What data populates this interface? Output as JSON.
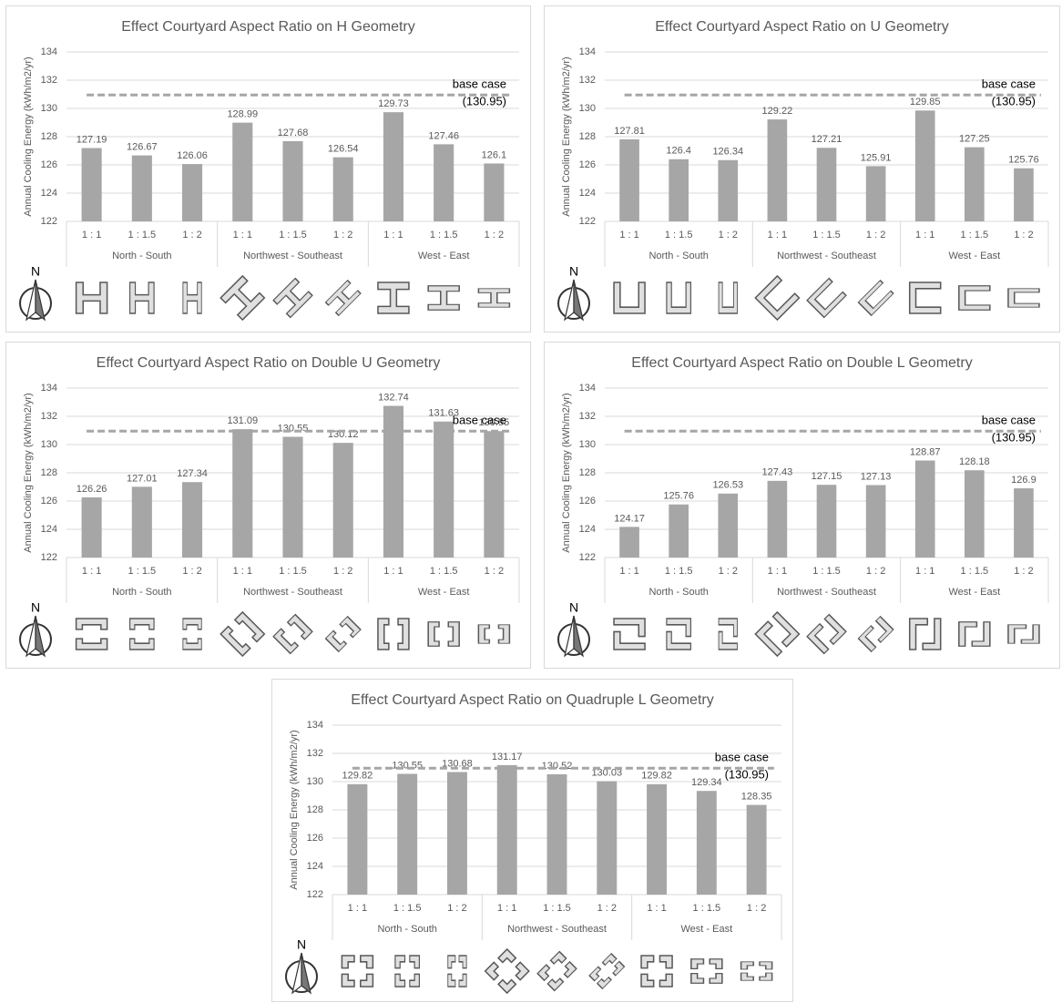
{
  "chart_data": [
    {
      "type": "bar",
      "title": "Effect Courtyard Aspect Ratio on H Geometry",
      "y_label": "Annual Cooling Energy (kWh/m2/yr)",
      "categories": [
        "1 : 1",
        "1 : 1.5",
        "1 : 2",
        "1 : 1",
        "1 : 1.5",
        "1 : 2",
        "1 : 1",
        "1 : 1.5",
        "1 : 2"
      ],
      "groups": [
        "North - South",
        "Northwest - Southeast",
        "West - East"
      ],
      "values": [
        127.19,
        126.67,
        126.06,
        128.99,
        127.68,
        126.54,
        129.73,
        127.46,
        126.1
      ],
      "color": "#a6a6a6",
      "ylim": [
        122,
        134
      ],
      "yticks": [
        122,
        124,
        126,
        128,
        130,
        132,
        134
      ],
      "grid": true,
      "baseline": {
        "value": 130.95,
        "label": "base case",
        "value_label": "(130.95)"
      },
      "north_label": "N"
    },
    {
      "type": "bar",
      "title": "Effect Courtyard Aspect Ratio on U Geometry",
      "y_label": "Annual Cooling Energy (kWh/m2/yr)",
      "categories": [
        "1 : 1",
        "1 : 1.5",
        "1 : 2",
        "1 : 1",
        "1 : 1.5",
        "1 : 2",
        "1 : 1",
        "1 : 1.5",
        "1 : 2"
      ],
      "groups": [
        "North - South",
        "Northwest - Southeast",
        "West - East"
      ],
      "values": [
        127.81,
        126.4,
        126.34,
        129.22,
        127.21,
        125.91,
        129.85,
        127.25,
        125.76
      ],
      "color": "#a6a6a6",
      "ylim": [
        122,
        134
      ],
      "yticks": [
        122,
        124,
        126,
        128,
        130,
        132,
        134
      ],
      "grid": true,
      "baseline": {
        "value": 130.95,
        "label": "base case",
        "value_label": "(130.95)"
      },
      "north_label": "N"
    },
    {
      "type": "bar",
      "title": "Effect Courtyard Aspect Ratio on Double U Geometry",
      "y_label": "Annual Cooling Energy (kWh/m2/yr)",
      "categories": [
        "1 : 1",
        "1 : 1.5",
        "1 : 2",
        "1 : 1",
        "1 : 1.5",
        "1 : 2",
        "1 : 1",
        "1 : 1.5",
        "1 : 2"
      ],
      "groups": [
        "North - South",
        "Northwest - Southeast",
        "West - East"
      ],
      "values": [
        126.26,
        127.01,
        127.34,
        131.09,
        130.55,
        130.12,
        132.74,
        131.63,
        130.95
      ],
      "color": "#a6a6a6",
      "ylim": [
        122,
        134
      ],
      "yticks": [
        122,
        124,
        126,
        128,
        130,
        132,
        134
      ],
      "grid": true,
      "baseline": {
        "value": 130.95,
        "label": "base case"
      },
      "north_label": "N"
    },
    {
      "type": "bar",
      "title": "Effect Courtyard Aspect Ratio on Double L Geometry",
      "y_label": "Annual Cooling Energy (kWh/m2/yr)",
      "categories": [
        "1 : 1",
        "1 : 1.5",
        "1 : 2",
        "1 : 1",
        "1 : 1.5",
        "1 : 2",
        "1 : 1",
        "1 : 1.5",
        "1 : 2"
      ],
      "groups": [
        "North - South",
        "Northwest - Southeast",
        "West - East"
      ],
      "values": [
        124.17,
        125.76,
        126.53,
        127.43,
        127.15,
        127.13,
        128.87,
        128.18,
        126.9
      ],
      "color": "#a6a6a6",
      "ylim": [
        122,
        134
      ],
      "yticks": [
        122,
        124,
        126,
        128,
        130,
        132,
        134
      ],
      "grid": true,
      "baseline": {
        "value": 130.95,
        "label": "base case",
        "value_label": "(130.95)"
      },
      "north_label": "N"
    },
    {
      "type": "bar",
      "title": "Effect Courtyard Aspect Ratio on Quadruple L Geometry",
      "y_label": "Annual Cooling Energy (kWh/m2/yr)",
      "categories": [
        "1 : 1",
        "1 : 1.5",
        "1 : 2",
        "1 : 1",
        "1 : 1.5",
        "1 : 2",
        "1 : 1",
        "1 : 1.5",
        "1 : 2"
      ],
      "groups": [
        "North - South",
        "Northwest - Southeast",
        "West - East"
      ],
      "values": [
        129.82,
        130.55,
        130.68,
        131.17,
        130.52,
        130.03,
        129.82,
        129.34,
        128.35
      ],
      "color": "#a6a6a6",
      "ylim": [
        122,
        134
      ],
      "yticks": [
        122,
        124,
        126,
        128,
        130,
        132,
        134
      ],
      "grid": true,
      "baseline": {
        "value": 130.95,
        "label": "base case",
        "value_label": "(130.95)"
      },
      "north_label": "N"
    }
  ]
}
